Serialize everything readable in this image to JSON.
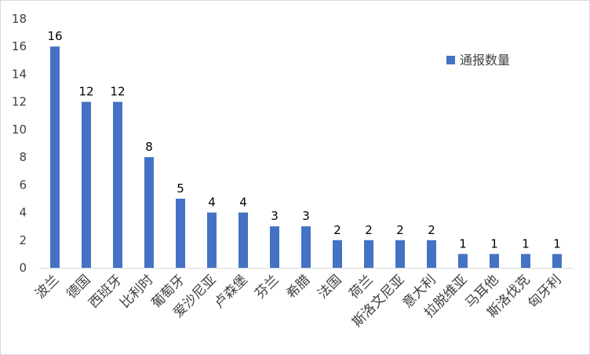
{
  "chart_data": {
    "type": "bar",
    "categories": [
      "波兰",
      "德国",
      "西班牙",
      "比利时",
      "葡萄牙",
      "爱沙尼亚",
      "卢森堡",
      "芬兰",
      "希腊",
      "法国",
      "荷兰",
      "斯洛文尼亚",
      "意大利",
      "拉脱维亚",
      "马耳他",
      "斯洛伐克",
      "匈牙利"
    ],
    "series": [
      {
        "name": "通报数量",
        "values": [
          16,
          12,
          12,
          8,
          5,
          4,
          4,
          3,
          3,
          2,
          2,
          2,
          2,
          1,
          1,
          1,
          1
        ],
        "color": "#4472c4"
      }
    ],
    "yticks": [
      "0",
      "2",
      "4",
      "6",
      "8",
      "10",
      "12",
      "14",
      "16",
      "18"
    ],
    "ylim": [
      0,
      18
    ],
    "grid": false,
    "data_labels": true,
    "legend_position": "top-right"
  }
}
